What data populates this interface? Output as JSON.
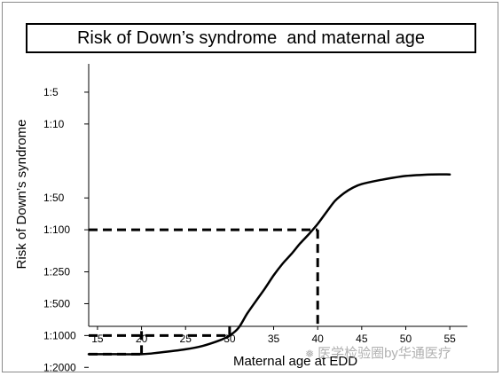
{
  "chart_data": {
    "type": "line",
    "title": "Risk of Down’s syndrome  and maternal age",
    "xlabel": "Maternal age at EDD",
    "ylabel": "Risk of Down’s syndrome",
    "xlim": [
      14,
      57
    ],
    "y_scale": "reciprocal-log",
    "y_ticks": [
      {
        "label": "1:5",
        "risk_denominator": 5
      },
      {
        "label": "1:10",
        "risk_denominator": 10
      },
      {
        "label": "1:50",
        "risk_denominator": 50
      },
      {
        "label": "1:100",
        "risk_denominator": 100
      },
      {
        "label": "1:250",
        "risk_denominator": 250
      },
      {
        "label": "1:500",
        "risk_denominator": 500
      },
      {
        "label": "1:1000",
        "risk_denominator": 1000
      },
      {
        "label": "1:2000",
        "risk_denominator": 2000
      }
    ],
    "x_ticks": [
      "15",
      "20",
      "25",
      "30",
      "35",
      "40",
      "45",
      "50",
      "55"
    ],
    "series": [
      {
        "color": "#000000",
        "points": [
          {
            "x": 14,
            "risk_denominator": 1500
          },
          {
            "x": 17,
            "risk_denominator": 1500
          },
          {
            "x": 20,
            "risk_denominator": 1500
          },
          {
            "x": 22,
            "risk_denominator": 1450
          },
          {
            "x": 25,
            "risk_denominator": 1350
          },
          {
            "x": 27,
            "risk_denominator": 1250
          },
          {
            "x": 29,
            "risk_denominator": 1100
          },
          {
            "x": 30,
            "risk_denominator": 1000
          },
          {
            "x": 31,
            "risk_denominator": 850
          },
          {
            "x": 32,
            "risk_denominator": 620
          },
          {
            "x": 33,
            "risk_denominator": 470
          },
          {
            "x": 34,
            "risk_denominator": 360
          },
          {
            "x": 35,
            "risk_denominator": 270
          },
          {
            "x": 36,
            "risk_denominator": 210
          },
          {
            "x": 37,
            "risk_denominator": 170
          },
          {
            "x": 38,
            "risk_denominator": 135
          },
          {
            "x": 39,
            "risk_denominator": 110
          },
          {
            "x": 40,
            "risk_denominator": 88
          },
          {
            "x": 41,
            "risk_denominator": 68
          },
          {
            "x": 42,
            "risk_denominator": 53
          },
          {
            "x": 43,
            "risk_denominator": 45
          },
          {
            "x": 44,
            "risk_denominator": 40
          },
          {
            "x": 45,
            "risk_denominator": 37
          },
          {
            "x": 47,
            "risk_denominator": 34
          },
          {
            "x": 50,
            "risk_denominator": 31
          },
          {
            "x": 53,
            "risk_denominator": 30
          },
          {
            "x": 55,
            "risk_denominator": 30
          }
        ]
      }
    ],
    "reference_lines": [
      {
        "x": 20,
        "risk_denominator": 1500,
        "style": "dashed"
      },
      {
        "x": 30,
        "risk_denominator": 1000,
        "style": "dashed"
      },
      {
        "x": 40,
        "risk_denominator": 100,
        "style": "dashed"
      }
    ],
    "grid": false,
    "legend": "none"
  },
  "watermark": {
    "icon": "wechat-icon",
    "text": "医学检验圈by华通医疗"
  }
}
